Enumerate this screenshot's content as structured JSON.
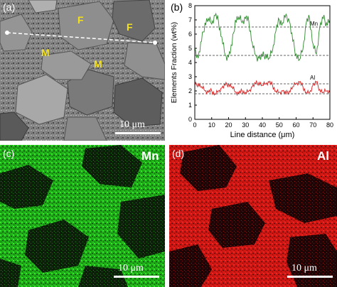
{
  "panels": {
    "a": {
      "label": "(a)",
      "scale_bar": "10 μm",
      "phase_labels": [
        "F",
        "F",
        "M",
        "M"
      ]
    },
    "b": {
      "label": "(b)",
      "scale_bar": "",
      "chart_data": {
        "type": "line",
        "title": "",
        "xlabel": "Line distance (μm)",
        "ylabel": "Elements Fraction (wt%)",
        "xlim": [
          0,
          80
        ],
        "ylim": [
          0,
          8
        ],
        "xticks": [
          0,
          10,
          20,
          30,
          40,
          50,
          60,
          70,
          80
        ],
        "yticks": [
          0,
          1,
          2,
          3,
          4,
          5,
          6,
          7,
          8
        ],
        "grid": false,
        "reference_lines": [
          6.5,
          4.5,
          2.5,
          1.8
        ],
        "series": [
          {
            "name": "Mn",
            "color": "#2e8b2e",
            "x": [
              0,
              2,
              4,
              6,
              8,
              10,
              12,
              14,
              16,
              18,
              20,
              22,
              24,
              26,
              28,
              30,
              32,
              34,
              36,
              38,
              40,
              42,
              44,
              46,
              48,
              50,
              52,
              54,
              56,
              58,
              60,
              62,
              64,
              66,
              68,
              70,
              72,
              74,
              76,
              78,
              80
            ],
            "values": [
              5.0,
              4.3,
              5.5,
              6.8,
              7.1,
              6.7,
              7.3,
              6.9,
              5.8,
              4.5,
              4.4,
              5.2,
              7.0,
              7.2,
              6.8,
              7.1,
              6.9,
              5.4,
              4.5,
              4.3,
              4.4,
              4.6,
              4.3,
              4.8,
              6.2,
              7.0,
              6.8,
              7.4,
              6.9,
              5.5,
              4.6,
              4.2,
              4.9,
              6.8,
              7.1,
              5.3,
              4.6,
              6.5,
              7.1,
              6.8,
              7.0
            ]
          },
          {
            "name": "Al",
            "color": "#d42020",
            "x": [
              0,
              2,
              4,
              6,
              8,
              10,
              12,
              14,
              16,
              18,
              20,
              22,
              24,
              26,
              28,
              30,
              32,
              34,
              36,
              38,
              40,
              42,
              44,
              46,
              48,
              50,
              52,
              54,
              56,
              58,
              60,
              62,
              64,
              66,
              68,
              70,
              72,
              74,
              76,
              78,
              80
            ],
            "values": [
              2.4,
              2.5,
              2.3,
              2.0,
              1.9,
              2.0,
              1.8,
              2.0,
              2.2,
              2.4,
              2.5,
              2.3,
              1.9,
              1.8,
              2.0,
              1.9,
              2.0,
              2.3,
              2.5,
              2.6,
              2.4,
              2.5,
              2.6,
              2.4,
              2.0,
              1.9,
              2.0,
              1.8,
              2.0,
              2.3,
              2.5,
              2.6,
              2.3,
              1.9,
              1.9,
              2.4,
              2.6,
              2.1,
              1.9,
              2.0,
              1.9
            ]
          }
        ]
      }
    },
    "c": {
      "label": "(c)",
      "element": "Mn",
      "scale_bar": "10 μm"
    },
    "d": {
      "label": "(d)",
      "element": "Al",
      "scale_bar": "10 μm"
    }
  },
  "colors": {
    "mn_map": "#22d41c",
    "al_map": "#e81c18",
    "phase_label": "#f5e21a"
  }
}
